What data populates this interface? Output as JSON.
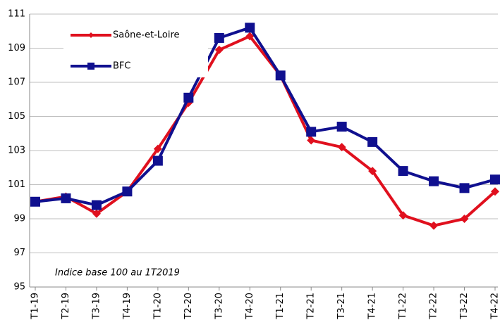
{
  "chart_data": {
    "type": "line",
    "categories": [
      "T1-19",
      "T2-19",
      "T3-19",
      "T4-19",
      "T1-20",
      "T2-20",
      "T3-20",
      "T4-20",
      "T1-21",
      "T2-21",
      "T3-21",
      "T4-21",
      "T1-22",
      "T2-22",
      "T3-22",
      "T4-22"
    ],
    "series": [
      {
        "name": "Saône-et-Loire",
        "color": "#e0101e",
        "marker": "diamond",
        "values": [
          100,
          100.3,
          99.3,
          100.6,
          103.1,
          105.8,
          108.9,
          109.7,
          107.4,
          103.6,
          103.2,
          101.8,
          99.2,
          98.6,
          99.0,
          100.6
        ]
      },
      {
        "name": "BFC",
        "color": "#10108f",
        "marker": "square",
        "values": [
          100,
          100.2,
          99.8,
          100.6,
          102.4,
          106.1,
          109.6,
          110.2,
          107.4,
          104.1,
          104.4,
          103.5,
          101.8,
          101.2,
          100.8,
          101.3
        ]
      }
    ],
    "annotation": "Indice base 100 au 1T2019",
    "ylim": [
      95,
      111
    ],
    "yticks": [
      95,
      97,
      99,
      101,
      103,
      105,
      107,
      109,
      111
    ],
    "grid": true,
    "legend": "upper left"
  }
}
